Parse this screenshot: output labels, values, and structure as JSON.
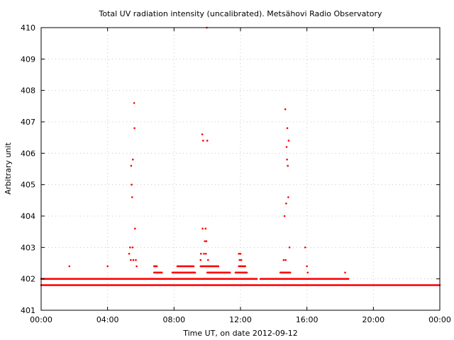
{
  "chart_data": {
    "type": "scatter",
    "title": "Total UV radiation intensity (uncalibrated). Metsähovi Radio Observatory",
    "xlabel": "Time UT, on date 2012-09-12",
    "ylabel": "Arbitrary unit",
    "xlim": [
      0,
      24
    ],
    "ylim": [
      401,
      410
    ],
    "xticks": [
      "00:00",
      "04:00",
      "08:00",
      "12:00",
      "16:00",
      "20:00",
      "00:00"
    ],
    "yticks": [
      "401",
      "402",
      "403",
      "404",
      "405",
      "406",
      "407",
      "408",
      "409",
      "410"
    ],
    "grid": true,
    "point_color": "#ff0000",
    "series": [
      {
        "bands": [
          {
            "value": 401.8,
            "ranges": [
              [
                0.0,
                24.0
              ]
            ]
          },
          {
            "value": 402.0,
            "ranges": [
              [
                0.0,
                13.0
              ],
              [
                13.2,
                18.5
              ]
            ]
          },
          {
            "value": 402.2,
            "ranges": [
              [
                6.8,
                7.3
              ],
              [
                7.9,
                9.3
              ],
              [
                10.0,
                11.4
              ],
              [
                11.7,
                12.4
              ],
              [
                14.4,
                15.0
              ]
            ]
          },
          {
            "value": 402.4,
            "ranges": [
              [
                6.8,
                7.0
              ],
              [
                8.2,
                9.2
              ],
              [
                9.6,
                10.7
              ],
              [
                11.9,
                12.3
              ]
            ]
          }
        ],
        "points": [
          [
            1.7,
            402.4
          ],
          [
            4.0,
            402.4
          ],
          [
            5.3,
            402.8
          ],
          [
            5.35,
            403.0
          ],
          [
            5.4,
            402.6
          ],
          [
            5.42,
            405.6
          ],
          [
            5.45,
            405.0
          ],
          [
            5.48,
            404.6
          ],
          [
            5.5,
            403.0
          ],
          [
            5.52,
            405.8
          ],
          [
            5.55,
            402.6
          ],
          [
            5.6,
            407.6
          ],
          [
            5.62,
            406.8
          ],
          [
            5.65,
            403.6
          ],
          [
            5.7,
            402.6
          ],
          [
            5.75,
            402.4
          ],
          [
            9.6,
            402.6
          ],
          [
            9.62,
            402.8
          ],
          [
            9.7,
            406.6
          ],
          [
            9.72,
            403.6
          ],
          [
            9.75,
            406.4
          ],
          [
            9.8,
            402.8
          ],
          [
            9.85,
            403.2
          ],
          [
            9.9,
            403.6
          ],
          [
            9.92,
            402.8
          ],
          [
            9.95,
            403.2
          ],
          [
            9.97,
            410.0
          ],
          [
            10.0,
            406.4
          ],
          [
            10.05,
            402.6
          ],
          [
            11.9,
            402.8
          ],
          [
            11.95,
            402.6
          ],
          [
            12.0,
            402.8
          ],
          [
            12.05,
            402.6
          ],
          [
            14.6,
            402.6
          ],
          [
            14.65,
            404.0
          ],
          [
            14.7,
            407.4
          ],
          [
            14.72,
            402.6
          ],
          [
            14.75,
            404.4
          ],
          [
            14.78,
            406.2
          ],
          [
            14.8,
            405.8
          ],
          [
            14.82,
            406.8
          ],
          [
            14.85,
            405.6
          ],
          [
            14.88,
            404.6
          ],
          [
            14.9,
            406.4
          ],
          [
            14.95,
            403.0
          ],
          [
            15.9,
            403.0
          ],
          [
            16.0,
            402.4
          ],
          [
            16.05,
            402.2
          ],
          [
            18.3,
            402.2
          ]
        ]
      }
    ]
  }
}
